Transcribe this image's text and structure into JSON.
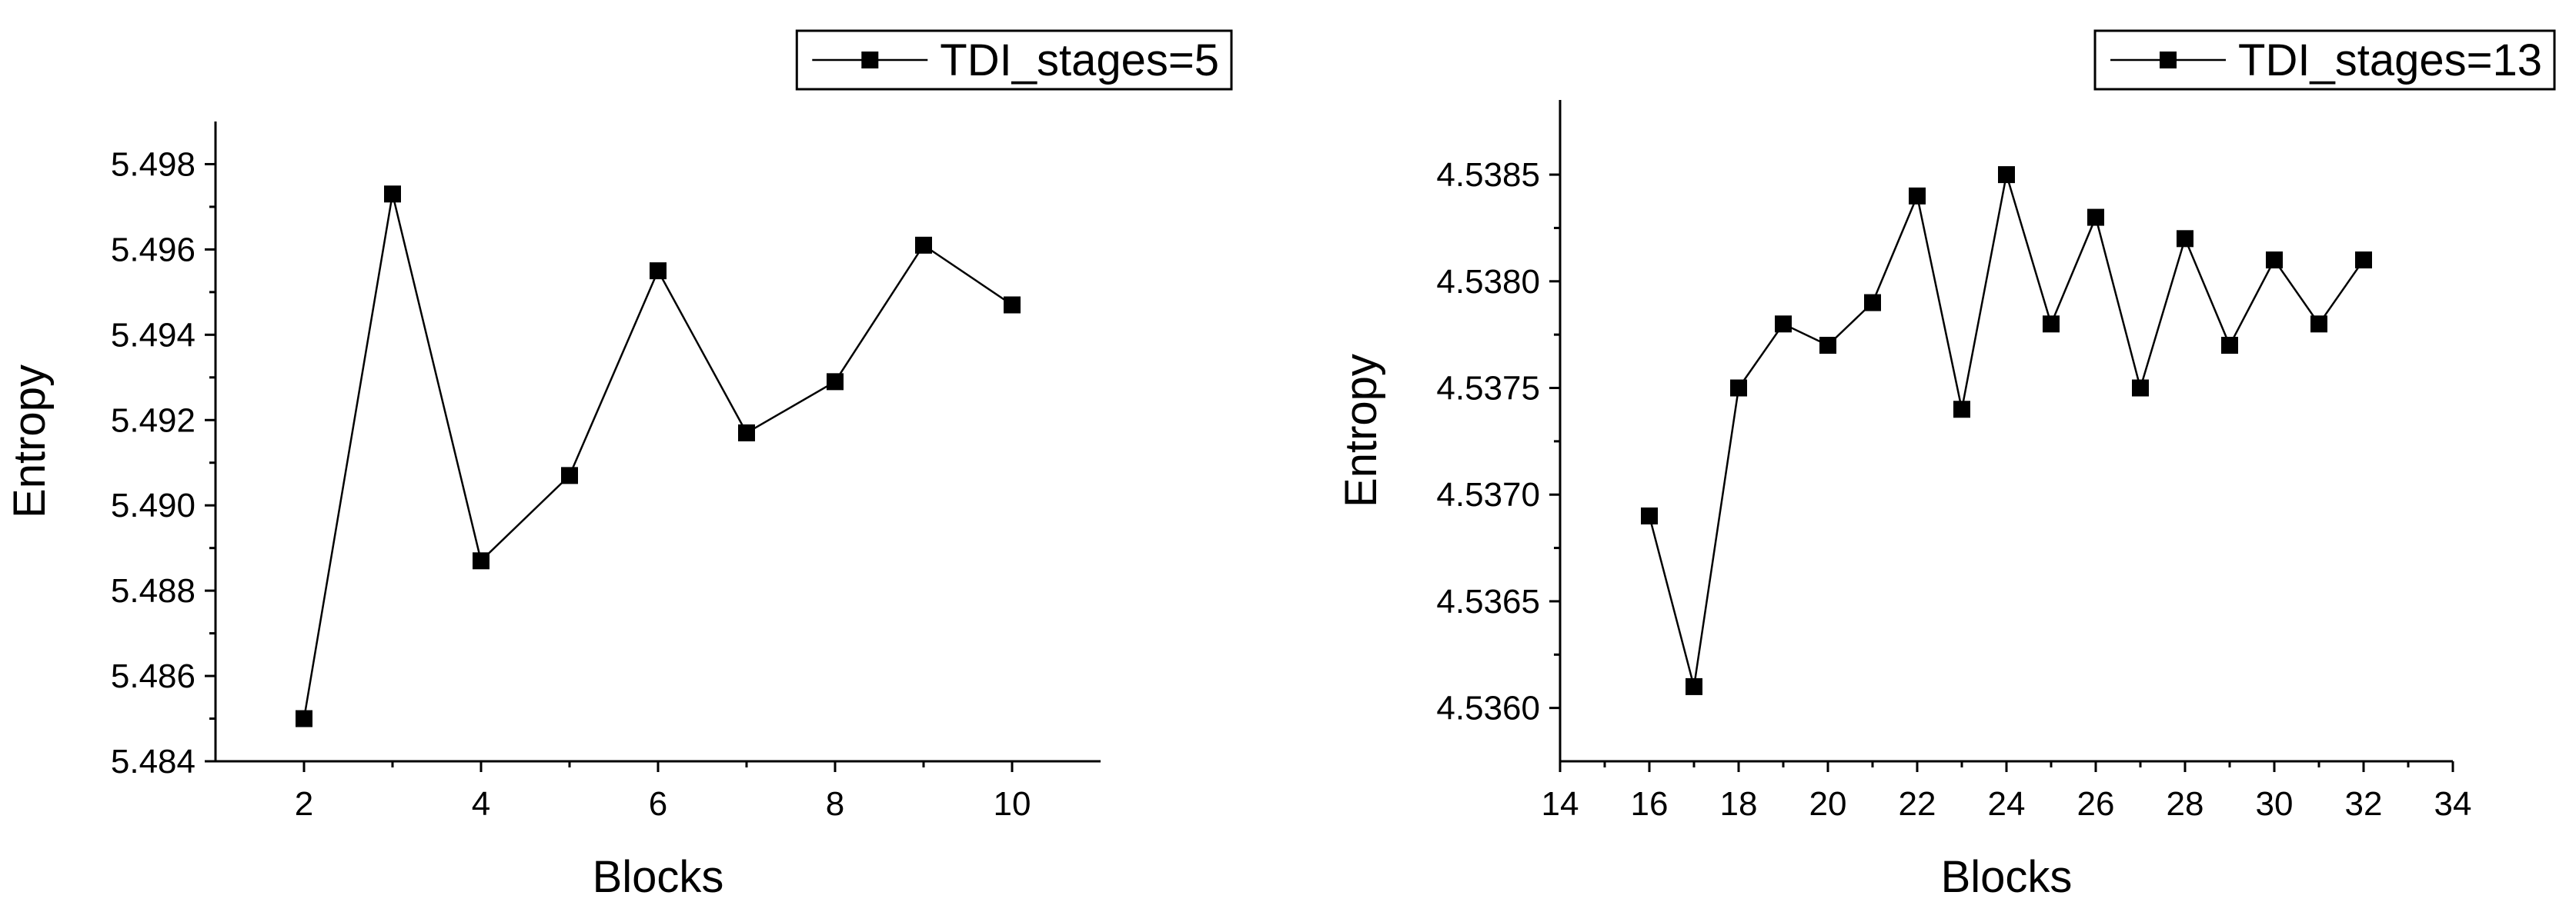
{
  "chart_data": [
    {
      "type": "line",
      "title": "",
      "xlabel": "Blocks",
      "ylabel": "Entropy",
      "xlim": [
        1,
        11
      ],
      "ylim": [
        5.484,
        5.499
      ],
      "xticks": [
        2,
        4,
        6,
        8,
        10
      ],
      "xtick_labels": [
        "2",
        "4",
        "6",
        "8",
        "10"
      ],
      "yticks": [
        5.484,
        5.486,
        5.488,
        5.49,
        5.492,
        5.494,
        5.496,
        5.498
      ],
      "ytick_labels": [
        "5.484",
        "5.486",
        "5.488",
        "5.490",
        "5.492",
        "5.494",
        "5.496",
        "5.498"
      ],
      "grid": false,
      "legend_position": "top-right",
      "series": [
        {
          "name": "TDI_stages=5",
          "marker": "square",
          "x": [
            2,
            3,
            4,
            5,
            6,
            7,
            8,
            9,
            10
          ],
          "values": [
            5.485,
            5.4973,
            5.4887,
            5.4907,
            5.4955,
            5.4917,
            5.4929,
            5.4961,
            5.4947
          ]
        }
      ]
    },
    {
      "type": "line",
      "title": "",
      "xlabel": "Blocks",
      "ylabel": "Entropy",
      "xlim": [
        14,
        34
      ],
      "ylim": [
        4.53575,
        4.53885
      ],
      "xticks": [
        14,
        16,
        18,
        20,
        22,
        24,
        26,
        28,
        30,
        32,
        34
      ],
      "xtick_labels": [
        "14",
        "16",
        "18",
        "20",
        "22",
        "24",
        "26",
        "28",
        "30",
        "32",
        "34"
      ],
      "yticks": [
        4.536,
        4.5365,
        4.537,
        4.5375,
        4.538,
        4.5385
      ],
      "ytick_labels": [
        "4.5360",
        "4.5365",
        "4.5370",
        "4.5375",
        "4.5380",
        "4.5385"
      ],
      "grid": false,
      "legend_position": "top-right",
      "series": [
        {
          "name": "TDI_stages=13",
          "marker": "square",
          "x": [
            16,
            17,
            18,
            19,
            20,
            21,
            22,
            23,
            24,
            25,
            26,
            27,
            28,
            29,
            30,
            31,
            32
          ],
          "values": [
            4.5369,
            4.5361,
            4.5375,
            4.5378,
            4.5377,
            4.5379,
            4.5384,
            4.5374,
            4.5385,
            4.5378,
            4.5383,
            4.5375,
            4.5382,
            4.5377,
            4.5381,
            4.5378,
            4.5381
          ]
        }
      ]
    }
  ]
}
